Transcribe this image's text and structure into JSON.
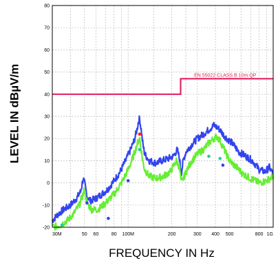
{
  "chart_data": {
    "type": "line",
    "title": "",
    "xlabel": "FREQUENCY IN Hz",
    "ylabel": "LEVEL IN dBµV/m",
    "x_scale": "log",
    "xlim": [
      30,
      1000
    ],
    "ylim": [
      -20,
      80
    ],
    "grid": true,
    "y_ticks": [
      "80",
      "70",
      "60",
      "50",
      "40",
      "30",
      "20",
      "10",
      "0",
      "-10",
      "-20"
    ],
    "x_ticks": [
      {
        "label": "30M",
        "value": 30
      },
      {
        "label": "50",
        "value": 50
      },
      {
        "label": "60",
        "value": 60
      },
      {
        "label": "80",
        "value": 80
      },
      {
        "label": "100M",
        "value": 100
      },
      {
        "label": "200",
        "value": 200
      },
      {
        "label": "300",
        "value": 300
      },
      {
        "label": "400",
        "value": 400
      },
      {
        "label": "500",
        "value": 500
      },
      {
        "label": "800",
        "value": 800
      },
      {
        "label": "1G",
        "value": 1000
      }
    ],
    "limit_line": {
      "label": "EN 55022 CLASS B 10m QP",
      "color": "#e0245e",
      "points": [
        [
          30,
          40
        ],
        [
          230,
          40
        ],
        [
          230,
          47
        ],
        [
          1000,
          47
        ]
      ]
    },
    "series": [
      {
        "color": "#3344ee",
        "x": [
          30,
          33,
          36,
          40,
          44,
          47,
          49,
          50,
          52,
          55,
          60,
          66,
          72,
          80,
          88,
          96,
          104,
          110,
          115,
          118,
          120,
          123,
          126,
          130,
          140,
          155,
          170,
          190,
          205,
          218,
          226,
          232,
          240,
          250,
          265,
          280,
          300,
          330,
          360,
          390,
          410,
          430,
          450,
          480,
          520,
          580,
          650,
          720,
          800,
          880,
          940,
          1000
        ],
        "y": [
          -17,
          -14,
          -12,
          -10,
          -7,
          -4,
          2,
          0,
          -6,
          -8,
          -7,
          -5,
          -3,
          1,
          5,
          10,
          15,
          19,
          24,
          28,
          29,
          24,
          18,
          13,
          10,
          9,
          10,
          11,
          12,
          15,
          11,
          4,
          10,
          14,
          16,
          18,
          20,
          22,
          24,
          26,
          25,
          24,
          22,
          20,
          18,
          14,
          12,
          10,
          6,
          5,
          7,
          4
        ]
      },
      {
        "color": "#66ee33",
        "x": [
          30,
          34,
          38,
          42,
          46,
          49,
          50,
          52,
          56,
          62,
          70,
          80,
          90,
          100,
          110,
          116,
          120,
          123,
          126,
          130,
          140,
          155,
          175,
          195,
          215,
          226,
          232,
          240,
          255,
          275,
          300,
          330,
          360,
          390,
          410,
          430,
          460,
          500,
          560,
          620,
          700,
          800,
          900,
          1000
        ],
        "y": [
          -20,
          -19,
          -17,
          -14,
          -10,
          -5,
          -3,
          -9,
          -12,
          -12,
          -9,
          -5,
          0,
          6,
          13,
          18,
          20,
          15,
          10,
          6,
          3,
          2,
          3,
          5,
          10,
          7,
          0,
          2,
          6,
          10,
          13,
          15,
          18,
          20,
          21,
          19,
          15,
          10,
          7,
          4,
          2,
          0,
          1,
          3
        ]
      }
    ],
    "markers": [
      {
        "x": 120,
        "y": 22,
        "color": "#ff2200"
      },
      {
        "x": 120,
        "y": 15,
        "color": "#22cc99"
      },
      {
        "x": 35,
        "y": -19,
        "color": "#22cc99"
      },
      {
        "x": 52,
        "y": -9,
        "color": "#3344ee"
      },
      {
        "x": 73,
        "y": -16,
        "color": "#3344ee"
      },
      {
        "x": 100,
        "y": 1,
        "color": "#3344ee"
      },
      {
        "x": 360,
        "y": 12,
        "color": "#22cc99"
      },
      {
        "x": 430,
        "y": 11,
        "color": "#22cc99"
      },
      {
        "x": 450,
        "y": 8,
        "color": "#3344ee"
      }
    ]
  }
}
